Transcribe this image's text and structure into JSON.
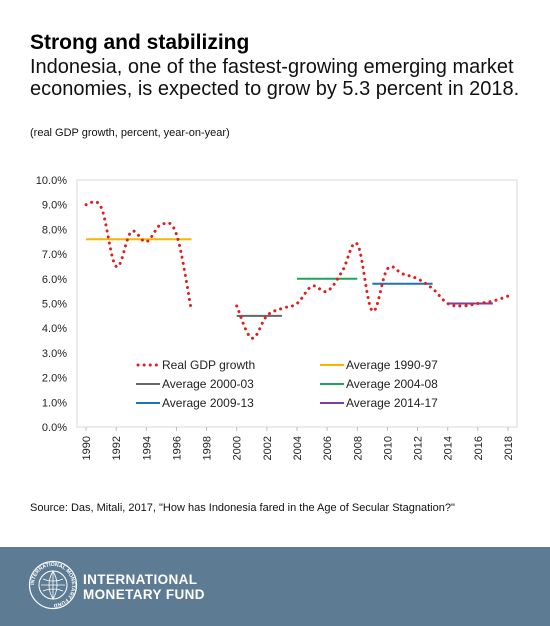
{
  "header": {
    "title": "Strong and stabilizing",
    "subtitle": "Indonesia, one of the fastest-growing emerging market economies, is expected to grow by 5.3 percent in 2018.",
    "note": "(real GDP growth, percent, year-on-year)"
  },
  "source": "Source: Das, Mitali, 2017,  \"How has Indonesia fared in the Age of Secular Stagnation?\"",
  "footer": {
    "org_line1": "INTERNATIONAL",
    "org_line2": "MONETARY FUND",
    "background": "#5e7b94",
    "seal_text": "INTERNATIONAL MONETARY FUND"
  },
  "chart_data": {
    "type": "line",
    "x_ticks": [
      1990,
      1992,
      1994,
      1996,
      1998,
      2000,
      2002,
      2004,
      2006,
      2008,
      2010,
      2012,
      2014,
      2016,
      2018
    ],
    "y_ticks": [
      "0.0%",
      "1.0%",
      "2.0%",
      "3.0%",
      "4.0%",
      "5.0%",
      "6.0%",
      "7.0%",
      "8.0%",
      "9.0%",
      "10.0%"
    ],
    "xlim": [
      1989.4,
      2018.6
    ],
    "ylim": [
      0,
      10
    ],
    "grid": false,
    "legend_position": "lower-center",
    "series": [
      {
        "name": "Real GDP growth",
        "style": "dotted",
        "color": "#e0201f",
        "segments": [
          {
            "x": [
              1990,
              1991,
              1992,
              1993,
              1994,
              1995,
              1996,
              1997
            ],
            "y": [
              9.0,
              8.9,
              6.5,
              7.9,
              7.5,
              8.2,
              7.8,
              4.7
            ]
          },
          {
            "x": [
              2000,
              2001,
              2002,
              2003,
              2004,
              2005,
              2006,
              2007,
              2008,
              2009,
              2010,
              2011,
              2012,
              2013,
              2014,
              2015,
              2016,
              2017,
              2018
            ],
            "y": [
              4.9,
              3.6,
              4.5,
              4.8,
              5.0,
              5.7,
              5.5,
              6.3,
              7.4,
              4.7,
              6.4,
              6.2,
              6.0,
              5.6,
              5.0,
              4.9,
              5.0,
              5.1,
              5.3
            ]
          }
        ]
      },
      {
        "name": "Average 1990-97",
        "style": "solid",
        "color": "#f5b800",
        "x": [
          1990,
          1997
        ],
        "value": 7.6
      },
      {
        "name": "Average 2000-03",
        "style": "solid",
        "color": "#666666",
        "x": [
          2000,
          2003
        ],
        "value": 4.5
      },
      {
        "name": "Average 2004-08",
        "style": "solid",
        "color": "#1fa35b",
        "x": [
          2004,
          2008
        ],
        "value": 6.0
      },
      {
        "name": "Average 2009-13",
        "style": "solid",
        "color": "#1f72b8",
        "x": [
          2009,
          2013
        ],
        "value": 5.8
      },
      {
        "name": "Average 2014-17",
        "style": "solid",
        "color": "#7a3ea5",
        "x": [
          2014,
          2017
        ],
        "value": 5.0
      }
    ]
  }
}
